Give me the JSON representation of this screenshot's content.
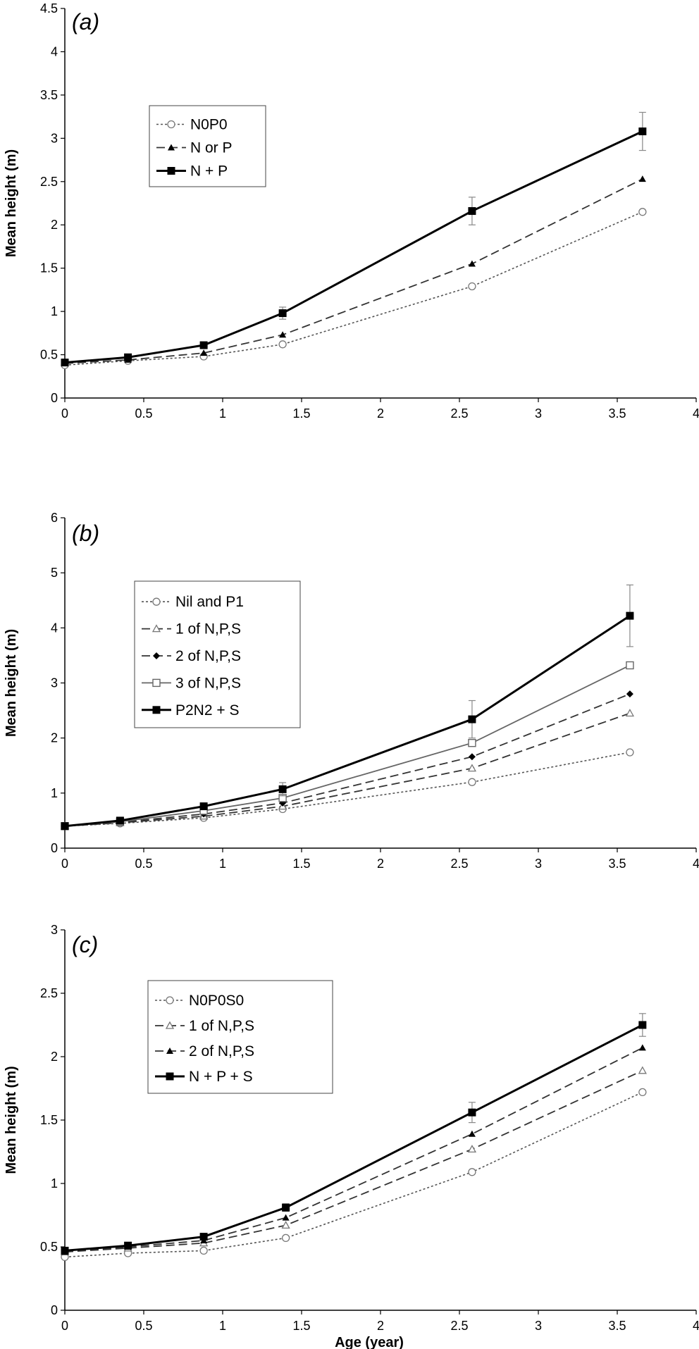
{
  "chart_data": [
    {
      "type": "line",
      "panel_label": "(a)",
      "ylabel": "Mean height (m)",
      "xlabel": "",
      "xlim": [
        0,
        4
      ],
      "ylim": [
        0,
        4.5
      ],
      "x_ticks": [
        "0",
        "0.5",
        "1",
        "1.5",
        "2",
        "2.5",
        "3",
        "3.5",
        "4"
      ],
      "y_ticks": [
        "0",
        "0.5",
        "1",
        "1.5",
        "2",
        "2.5",
        "3",
        "3.5",
        "4",
        "4.5"
      ],
      "grid": false,
      "legend": "upper-left",
      "series": [
        {
          "name": "N0P0",
          "style": "dotted",
          "marker": "circle-open",
          "x": [
            0,
            0.4,
            0.88,
            1.38,
            2.58,
            3.66
          ],
          "y": [
            0.38,
            0.43,
            0.48,
            0.62,
            1.29,
            2.15
          ]
        },
        {
          "name": "N or P",
          "style": "dashed",
          "marker": "triangle-filled",
          "x": [
            0,
            0.4,
            0.88,
            1.38,
            2.58,
            3.66
          ],
          "y": [
            0.4,
            0.44,
            0.52,
            0.73,
            1.55,
            2.53
          ]
        },
        {
          "name": "N + P",
          "style": "solid",
          "marker": "square-filled",
          "x": [
            0,
            0.4,
            0.88,
            1.38,
            2.58,
            3.66
          ],
          "y": [
            0.41,
            0.47,
            0.61,
            0.98,
            2.16,
            3.08
          ],
          "error": [
            0,
            0,
            0,
            0.07,
            0.16,
            0.22
          ]
        }
      ]
    },
    {
      "type": "line",
      "panel_label": "(b)",
      "ylabel": "Mean height (m)",
      "xlabel": "",
      "xlim": [
        0,
        4
      ],
      "ylim": [
        0,
        6
      ],
      "x_ticks": [
        "0",
        "0.5",
        "1",
        "1.5",
        "2",
        "2.5",
        "3",
        "3.5",
        "4"
      ],
      "y_ticks": [
        "0",
        "1",
        "2",
        "3",
        "4",
        "5",
        "6"
      ],
      "grid": false,
      "legend": "upper-left",
      "series": [
        {
          "name": "Nil and P1",
          "style": "dotted",
          "marker": "circle-open",
          "x": [
            0,
            0.35,
            0.88,
            1.38,
            2.58,
            3.58
          ],
          "y": [
            0.4,
            0.45,
            0.55,
            0.71,
            1.2,
            1.74
          ]
        },
        {
          "name": "1 of N,P,S",
          "style": "dashed",
          "marker": "triangle-open",
          "x": [
            0,
            0.35,
            0.88,
            1.38,
            2.58,
            3.58
          ],
          "y": [
            0.4,
            0.46,
            0.58,
            0.76,
            1.45,
            2.45
          ]
        },
        {
          "name": "2 of N,P,S",
          "style": "dashed",
          "marker": "diamond-filled",
          "x": [
            0,
            0.35,
            0.88,
            1.38,
            2.58,
            3.58
          ],
          "y": [
            0.4,
            0.47,
            0.62,
            0.82,
            1.66,
            2.8
          ]
        },
        {
          "name": "3 of N,P,S",
          "style": "solid-thin",
          "marker": "square-open",
          "x": [
            0,
            0.35,
            0.88,
            1.38,
            2.58,
            3.58
          ],
          "y": [
            0.4,
            0.48,
            0.68,
            0.91,
            1.91,
            3.32
          ]
        },
        {
          "name": "P2N2 + S",
          "style": "solid",
          "marker": "square-filled",
          "x": [
            0,
            0.35,
            0.88,
            1.38,
            2.58,
            3.58
          ],
          "y": [
            0.4,
            0.5,
            0.76,
            1.07,
            2.34,
            4.22
          ],
          "error": [
            0,
            0,
            0,
            0.12,
            0.34,
            0.56
          ]
        }
      ]
    },
    {
      "type": "line",
      "panel_label": "(c)",
      "ylabel": "Mean height (m)",
      "xlabel": "Age (year)",
      "xlim": [
        0,
        4
      ],
      "ylim": [
        0,
        3
      ],
      "x_ticks": [
        "0",
        "0.5",
        "1",
        "1.5",
        "2",
        "2.5",
        "3",
        "3.5",
        "4"
      ],
      "y_ticks": [
        "0",
        "0.5",
        "1",
        "1.5",
        "2",
        "2.5",
        "3"
      ],
      "grid": false,
      "legend": "upper-left",
      "series": [
        {
          "name": "N0P0S0",
          "style": "dotted",
          "marker": "circle-open",
          "x": [
            0,
            0.4,
            0.88,
            1.4,
            2.58,
            3.66
          ],
          "y": [
            0.42,
            0.45,
            0.47,
            0.57,
            1.09,
            1.72
          ]
        },
        {
          "name": "1 of N,P,S",
          "style": "dashed",
          "marker": "triangle-open",
          "x": [
            0,
            0.4,
            0.88,
            1.4,
            2.58,
            3.66
          ],
          "y": [
            0.46,
            0.49,
            0.53,
            0.67,
            1.27,
            1.89
          ]
        },
        {
          "name": "2 of N,P,S",
          "style": "dashed",
          "marker": "triangle-filled",
          "x": [
            0,
            0.4,
            0.88,
            1.4,
            2.58,
            3.66
          ],
          "y": [
            0.46,
            0.5,
            0.55,
            0.73,
            1.39,
            2.07
          ]
        },
        {
          "name": "N + P + S",
          "style": "solid",
          "marker": "square-filled",
          "x": [
            0,
            0.4,
            0.88,
            1.4,
            2.58,
            3.66
          ],
          "y": [
            0.47,
            0.51,
            0.58,
            0.81,
            1.56,
            2.25
          ],
          "error": [
            0,
            0,
            0,
            0.03,
            0.08,
            0.09
          ]
        }
      ]
    }
  ]
}
